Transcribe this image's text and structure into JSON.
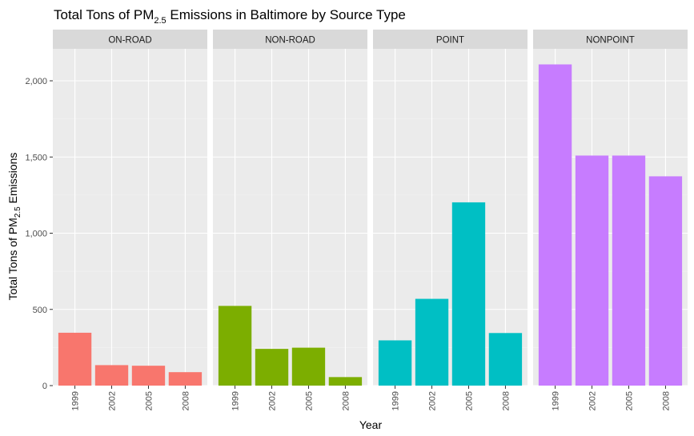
{
  "chart_data": {
    "type": "bar",
    "title_prefix": "Total Tons of PM",
    "title_subscript": "2.5",
    "title_suffix": " Emissions in Baltimore by Source Type",
    "xlabel": "Year",
    "ylabel_prefix": "Total Tons of PM",
    "ylabel_subscript": "2.5",
    "ylabel_suffix": " Emissions",
    "categories": [
      "1999",
      "2002",
      "2005",
      "2008"
    ],
    "ylim": [
      0,
      2210
    ],
    "yticks": [
      0,
      500,
      1000,
      1500,
      2000
    ],
    "ytick_labels": [
      "0",
      "500",
      "1,000",
      "1,500",
      "2,000"
    ],
    "grid": true,
    "facets": [
      {
        "name": "ON-ROAD",
        "color": "#F8766D",
        "values": [
          346.82,
          134.31,
          130.43,
          88.28
        ]
      },
      {
        "name": "NON-ROAD",
        "color": "#7CAE00",
        "values": [
          522.94,
          240.85,
          248.93,
          55.82
        ]
      },
      {
        "name": "POINT",
        "color": "#00BFC4",
        "values": [
          296.8,
          569.26,
          1202.49,
          344.98
        ]
      },
      {
        "name": "NONPOINT",
        "color": "#C77CFF",
        "values": [
          2107.63,
          1509.5,
          1509.5,
          1373.21
        ]
      }
    ]
  }
}
